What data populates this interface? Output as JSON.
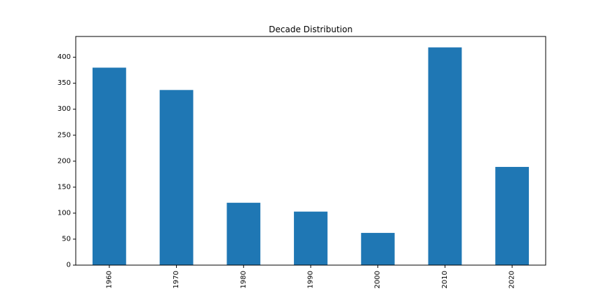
{
  "chart_data": {
    "type": "bar",
    "title": "Decade Distribution",
    "xlabel": "",
    "ylabel": "",
    "categories": [
      "1960",
      "1970",
      "1980",
      "1990",
      "2000",
      "2010",
      "2020"
    ],
    "values": [
      380,
      337,
      120,
      103,
      62,
      419,
      189
    ],
    "ylim": [
      0,
      440
    ],
    "yticks": [
      0,
      50,
      100,
      150,
      200,
      250,
      300,
      350,
      400
    ],
    "bar_color": "#1f77b4",
    "grid": false,
    "legend": "none",
    "x_tick_rotation": "vertical"
  }
}
